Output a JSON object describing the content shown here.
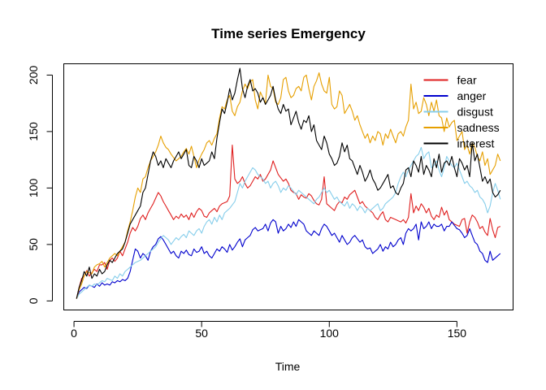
{
  "chart_data": {
    "type": "line",
    "title": "Time series Emergency",
    "xlabel": "Time",
    "ylabel": "",
    "xlim": [
      -4,
      172
    ],
    "ylim": [
      -8,
      210
    ],
    "x_ticks": [
      0,
      50,
      100,
      150
    ],
    "y_ticks": [
      0,
      50,
      100,
      150,
      200
    ],
    "grid": false,
    "legend_position": "top-right",
    "x_start": 1,
    "series": [
      {
        "name": "fear",
        "color": "#DF1F1F",
        "values": [
          2,
          12,
          20,
          22,
          27,
          22,
          25,
          28,
          26,
          32,
          32,
          34,
          28,
          36,
          38,
          35,
          38,
          44,
          40,
          46,
          52,
          60,
          65,
          62,
          66,
          73,
          76,
          72,
          78,
          82,
          86,
          91,
          96,
          93,
          88,
          84,
          80,
          76,
          72,
          75,
          73,
          77,
          74,
          76,
          72,
          78,
          74,
          79,
          82,
          80,
          75,
          74,
          78,
          80,
          82,
          79,
          84,
          86,
          87,
          88,
          93,
          138,
          108,
          104,
          106,
          110,
          104,
          100,
          102,
          106,
          110,
          108,
          112,
          106,
          108,
          112,
          116,
          124,
          118,
          112,
          109,
          106,
          108,
          104,
          98,
          96,
          95,
          90,
          94,
          92,
          91,
          95,
          93,
          89,
          86,
          85,
          90,
          110,
          86,
          84,
          82,
          80,
          85,
          88,
          87,
          92,
          90,
          94,
          96,
          98,
          92,
          86,
          88,
          84,
          82,
          80,
          78,
          74,
          72,
          76,
          79,
          72,
          70,
          74,
          73,
          72,
          71,
          70,
          72,
          69,
          74,
          95,
          78,
          84,
          80,
          86,
          83,
          78,
          82,
          75,
          72,
          76,
          74,
          83,
          76,
          80,
          72,
          70,
          68,
          67,
          66,
          72,
          73,
          60,
          70,
          76,
          74,
          70,
          64,
          66,
          61,
          58,
          73,
          63,
          56,
          65,
          66
        ]
      },
      {
        "name": "anger",
        "color": "#0000CD",
        "values": [
          2,
          8,
          10,
          12,
          11,
          14,
          13,
          12,
          15,
          13,
          16,
          14,
          15,
          14,
          17,
          16,
          18,
          17,
          19,
          18,
          20,
          26,
          36,
          46,
          44,
          38,
          42,
          40,
          36,
          44,
          48,
          50,
          55,
          57,
          54,
          50,
          46,
          42,
          44,
          40,
          38,
          44,
          42,
          45,
          41,
          40,
          46,
          43,
          44,
          48,
          42,
          44,
          40,
          38,
          42,
          46,
          44,
          48,
          46,
          43,
          50,
          45,
          48,
          52,
          55,
          48,
          54,
          56,
          58,
          63,
          65,
          62,
          63,
          64,
          68,
          62,
          69,
          72,
          70,
          60,
          66,
          62,
          64,
          68,
          65,
          70,
          66,
          72,
          70,
          68,
          62,
          60,
          58,
          62,
          60,
          58,
          64,
          68,
          66,
          62,
          58,
          60,
          56,
          52,
          58,
          54,
          50,
          52,
          56,
          58,
          55,
          52,
          54,
          48,
          46,
          47,
          42,
          44,
          46,
          50,
          44,
          48,
          46,
          52,
          48,
          50,
          54,
          56,
          50,
          60,
          64,
          62,
          64,
          68,
          54,
          70,
          64,
          66,
          70,
          64,
          68,
          66,
          66,
          68,
          62,
          66,
          66,
          70,
          67,
          64,
          63,
          60,
          56,
          58,
          64,
          58,
          52,
          50,
          44,
          42,
          36,
          34,
          44,
          36,
          38,
          40,
          42
        ]
      },
      {
        "name": "disgust",
        "color": "#87CEEB",
        "values": [
          2,
          6,
          8,
          10,
          12,
          14,
          13,
          15,
          14,
          16,
          18,
          17,
          20,
          19,
          18,
          22,
          20,
          24,
          22,
          26,
          28,
          30,
          32,
          34,
          35,
          36,
          38,
          40,
          42,
          44,
          46,
          48,
          52,
          55,
          58,
          56,
          54,
          50,
          53,
          56,
          54,
          57,
          59,
          56,
          62,
          60,
          58,
          62,
          64,
          60,
          66,
          70,
          72,
          68,
          74,
          70,
          76,
          72,
          78,
          80,
          82,
          85,
          88,
          96,
          104,
          100,
          106,
          110,
          114,
          118,
          116,
          112,
          110,
          108,
          104,
          106,
          100,
          104,
          106,
          102,
          96,
          100,
          98,
          102,
          100,
          97,
          94,
          98,
          96,
          94,
          92,
          90,
          88,
          86,
          90,
          92,
          96,
          100,
          96,
          98,
          94,
          90,
          92,
          88,
          86,
          84,
          88,
          82,
          86,
          84,
          80,
          84,
          82,
          78,
          82,
          80,
          82,
          84,
          86,
          80,
          82,
          86,
          88,
          90,
          92,
          96,
          104,
          110,
          114,
          110,
          116,
          120,
          124,
          128,
          130,
          136,
          126,
          130,
          132,
          118,
          120,
          124,
          116,
          110,
          118,
          128,
          124,
          120,
          118,
          122,
          116,
          110,
          104,
          106,
          102,
          100,
          96,
          98,
          92,
          90,
          86,
          78,
          84,
          96,
          104,
          98,
          90
        ]
      },
      {
        "name": "sadness",
        "color": "#E69F00",
        "values": [
          2,
          10,
          15,
          22,
          26,
          25,
          24,
          30,
          32,
          33,
          35,
          30,
          34,
          38,
          40,
          42,
          40,
          44,
          48,
          52,
          62,
          70,
          80,
          92,
          100,
          96,
          108,
          110,
          118,
          124,
          128,
          132,
          138,
          146,
          140,
          136,
          134,
          130,
          127,
          124,
          126,
          128,
          132,
          135,
          130,
          137,
          128,
          118,
          125,
          130,
          134,
          140,
          142,
          138,
          144,
          148,
          162,
          172,
          170,
          178,
          182,
          168,
          164,
          172,
          176,
          186,
          192,
          188,
          194,
          196,
          178,
          170,
          185,
          180,
          175,
          200,
          190,
          188,
          176,
          174,
          180,
          196,
          198,
          186,
          180,
          182,
          188,
          190,
          186,
          198,
          200,
          188,
          178,
          190,
          195,
          202,
          192,
          186,
          184,
          198,
          174,
          170,
          172,
          186,
          182,
          166,
          170,
          174,
          168,
          160,
          164,
          156,
          150,
          144,
          148,
          140,
          146,
          142,
          150,
          148,
          138,
          148,
          144,
          152,
          146,
          140,
          148,
          150,
          146,
          154,
          160,
          192,
          170,
          176,
          166,
          168,
          180,
          174,
          164,
          176,
          168,
          178,
          164,
          162,
          150,
          162,
          154,
          158,
          160,
          142,
          146,
          150,
          134,
          138,
          130,
          140,
          136,
          128,
          124,
          132,
          120,
          126,
          112,
          116,
          120,
          130,
          124
        ]
      },
      {
        "name": "interest",
        "color": "#000000",
        "values": [
          2,
          12,
          18,
          26,
          22,
          30,
          20,
          24,
          22,
          28,
          24,
          26,
          32,
          36,
          34,
          38,
          42,
          44,
          46,
          52,
          60,
          68,
          72,
          76,
          80,
          84,
          96,
          100,
          112,
          124,
          132,
          128,
          120,
          124,
          118,
          126,
          122,
          118,
          124,
          128,
          132,
          126,
          130,
          134,
          120,
          118,
          128,
          124,
          118,
          126,
          120,
          122,
          124,
          132,
          126,
          144,
          158,
          170,
          166,
          176,
          188,
          178,
          184,
          196,
          206,
          188,
          180,
          190,
          196,
          186,
          188,
          184,
          176,
          180,
          174,
          178,
          182,
          190,
          178,
          170,
          166,
          174,
          168,
          170,
          156,
          162,
          168,
          158,
          152,
          160,
          158,
          164,
          150,
          156,
          142,
          138,
          134,
          146,
          140,
          130,
          126,
          120,
          122,
          128,
          140,
          132,
          138,
          126,
          124,
          118,
          112,
          120,
          114,
          106,
          110,
          116,
          108,
          104,
          98,
          100,
          104,
          108,
          112,
          100,
          102,
          96,
          94,
          100,
          104,
          116,
          118,
          110,
          124,
          120,
          114,
          128,
          112,
          120,
          116,
          110,
          126,
          118,
          130,
          114,
          122,
          124,
          120,
          128,
          118,
          110,
          126,
          122,
          116,
          120,
          110,
          140,
          124,
          130,
          118,
          106,
          110,
          104,
          108,
          96,
          92,
          94,
          98
        ]
      }
    ]
  }
}
